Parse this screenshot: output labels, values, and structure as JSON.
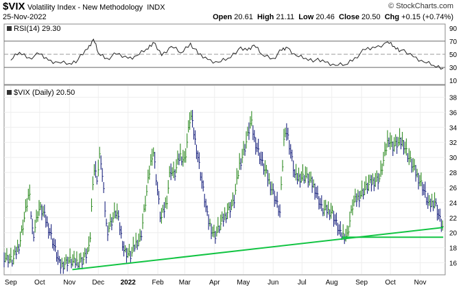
{
  "header": {
    "symbol": "$VIX",
    "description": "Volatility Index - New Methodology",
    "exchange": "INDX",
    "date": "25-Nov-2022",
    "brand": "© StockCharts.com",
    "quote": {
      "open_label": "Open",
      "open": "20.61",
      "high_label": "High",
      "high": "21.11",
      "low_label": "Low",
      "low": "20.46",
      "close_label": "Close",
      "close": "20.50",
      "chg_label": "Chg",
      "chg": "+0.15 (+0.74%)"
    }
  },
  "chart_data": [
    {
      "type": "line",
      "title": "RSI(14) 29.30",
      "ylim": [
        5,
        95
      ],
      "yticks": [
        10,
        30,
        50,
        70,
        90
      ],
      "reference_lines": [
        30,
        50,
        70
      ],
      "series": [
        {
          "x": [
            "2021-09-01",
            "2021-09-10",
            "2021-09-20",
            "2021-10-01",
            "2021-10-10",
            "2021-10-20",
            "2021-11-01",
            "2021-11-10",
            "2021-11-20",
            "2021-11-26",
            "2021-12-01",
            "2021-12-10",
            "2021-12-20",
            "2022-01-01",
            "2022-01-10",
            "2022-01-20",
            "2022-01-27",
            "2022-02-05",
            "2022-02-15",
            "2022-02-25",
            "2022-03-07",
            "2022-03-15",
            "2022-03-25",
            "2022-04-05",
            "2022-04-15",
            "2022-04-26",
            "2022-05-05",
            "2022-05-12",
            "2022-05-20",
            "2022-06-01",
            "2022-06-10",
            "2022-06-16",
            "2022-06-25",
            "2022-07-05",
            "2022-07-15",
            "2022-07-25",
            "2022-08-05",
            "2022-08-15",
            "2022-08-25",
            "2022-09-05",
            "2022-09-15",
            "2022-09-28",
            "2022-10-05",
            "2022-10-12",
            "2022-10-25",
            "2022-11-05",
            "2022-11-15",
            "2022-11-25"
          ],
          "values": [
            41,
            53,
            45,
            50,
            41,
            38,
            36,
            42,
            58,
            73,
            52,
            44,
            50,
            44,
            48,
            58,
            68,
            48,
            62,
            52,
            67,
            50,
            42,
            38,
            44,
            58,
            56,
            64,
            50,
            44,
            56,
            60,
            48,
            44,
            41,
            38,
            33,
            34,
            45,
            57,
            60,
            69,
            62,
            56,
            46,
            38,
            33,
            29
          ]
        }
      ]
    },
    {
      "type": "line",
      "title": "$VIX (Daily) 20.50",
      "ylim": [
        14.5,
        39.5
      ],
      "yticks": [
        16,
        18,
        20,
        22,
        24,
        26,
        28,
        30,
        32,
        34,
        36,
        38
      ],
      "xticks": [
        "Sep",
        "Oct",
        "Nov",
        "Dec",
        "2022",
        "Feb",
        "Mar",
        "Apr",
        "May",
        "Jun",
        "Jul",
        "Aug",
        "Sep",
        "Oct",
        "Nov"
      ],
      "x_axis_range": [
        "2021-08-25",
        "2022-11-27"
      ],
      "series": [
        {
          "name": "$VIX",
          "x": [
            "2021-08-25",
            "2021-09-03",
            "2021-09-10",
            "2021-09-20",
            "2021-09-24",
            "2021-09-30",
            "2021-10-04",
            "2021-10-12",
            "2021-10-22",
            "2021-11-01",
            "2021-11-05",
            "2021-11-15",
            "2021-11-22",
            "2021-11-26",
            "2021-11-30",
            "2021-12-03",
            "2021-12-10",
            "2021-12-20",
            "2021-12-28",
            "2022-01-04",
            "2022-01-10",
            "2022-01-14",
            "2022-01-24",
            "2022-01-27",
            "2022-02-04",
            "2022-02-10",
            "2022-02-14",
            "2022-02-18",
            "2022-02-24",
            "2022-03-01",
            "2022-03-07",
            "2022-03-15",
            "2022-03-25",
            "2022-04-01",
            "2022-04-08",
            "2022-04-14",
            "2022-04-21",
            "2022-04-27",
            "2022-05-02",
            "2022-05-09",
            "2022-05-12",
            "2022-05-20",
            "2022-05-31",
            "2022-06-08",
            "2022-06-13",
            "2022-06-16",
            "2022-06-24",
            "2022-07-05",
            "2022-07-14",
            "2022-07-22",
            "2022-08-01",
            "2022-08-10",
            "2022-08-17",
            "2022-08-23",
            "2022-09-06",
            "2022-09-13",
            "2022-09-20",
            "2022-09-29",
            "2022-10-03",
            "2022-10-10",
            "2022-10-14",
            "2022-10-20",
            "2022-10-27",
            "2022-11-03",
            "2022-11-10",
            "2022-11-16",
            "2022-11-22",
            "2022-11-25"
          ],
          "values": [
            16.8,
            16.2,
            18.5,
            25.4,
            19.5,
            23.1,
            22.8,
            20.0,
            15.5,
            16.3,
            16.0,
            16.3,
            17.9,
            28.6,
            27.2,
            30.7,
            20.1,
            22.9,
            17.5,
            16.9,
            18.8,
            19.2,
            28.8,
            31.2,
            21.6,
            24.0,
            28.5,
            27.5,
            30.3,
            29.5,
            35.8,
            29.8,
            21.7,
            19.5,
            21.2,
            22.7,
            24.0,
            29.0,
            31.0,
            34.8,
            32.6,
            29.4,
            25.7,
            22.6,
            34.0,
            32.9,
            27.2,
            27.5,
            26.0,
            23.0,
            22.8,
            19.7,
            19.6,
            23.8,
            26.0,
            26.8,
            27.2,
            32.6,
            31.4,
            31.9,
            32.0,
            30.0,
            28.0,
            26.3,
            23.5,
            24.2,
            21.5,
            20.5
          ]
        }
      ],
      "trendlines": [
        {
          "x": [
            "2021-11-04",
            "2022-11-25"
          ],
          "values": [
            15.1,
            20.7
          ]
        },
        {
          "x": [
            "2022-08-12",
            "2022-11-25"
          ],
          "values": [
            19.4,
            19.4
          ]
        }
      ],
      "colors": {
        "up": "#2e8b22",
        "down": "#1a237e",
        "trendline": "#11c442"
      }
    }
  ]
}
